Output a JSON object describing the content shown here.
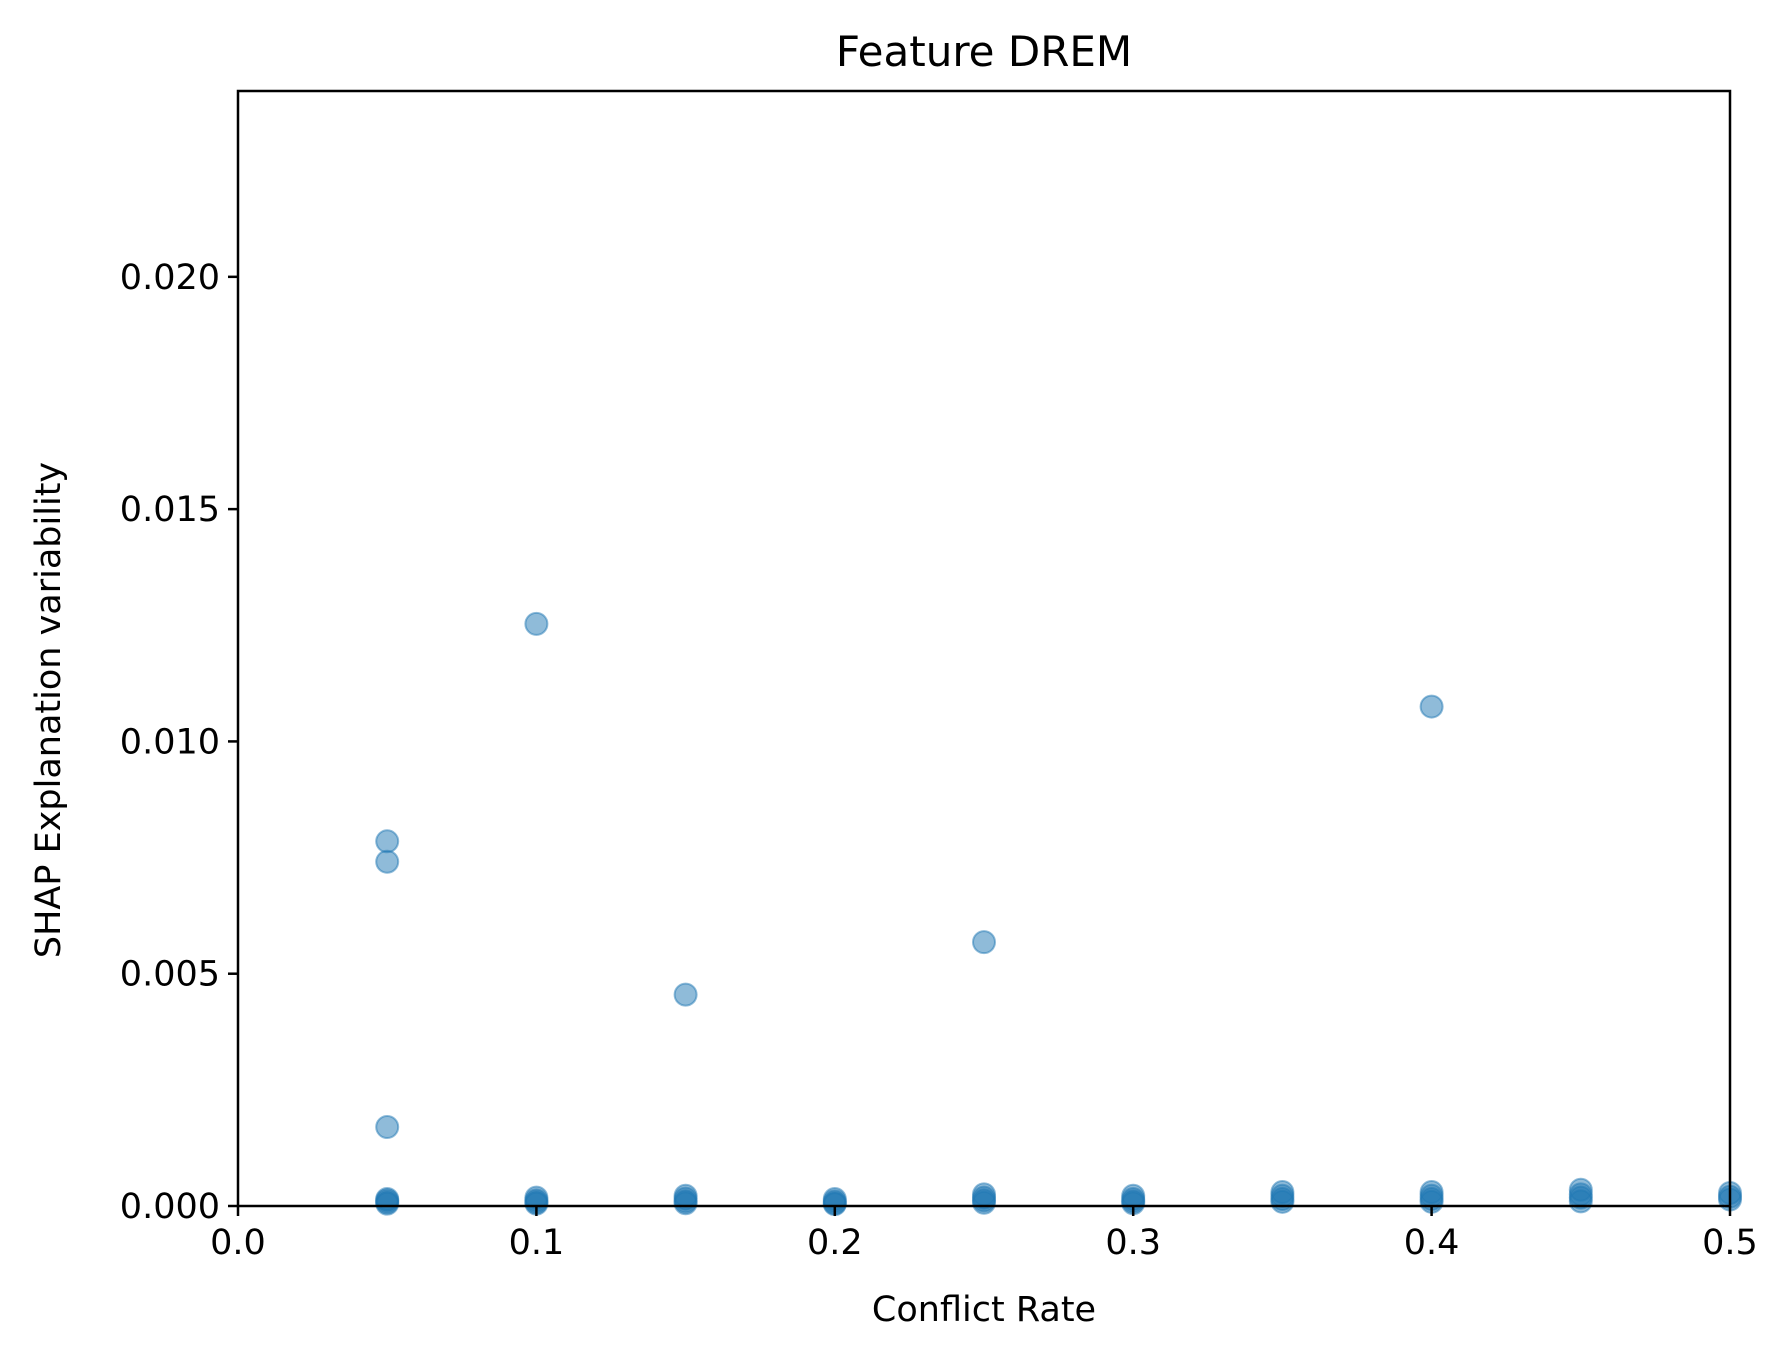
{
  "chart_data": {
    "type": "scatter",
    "title": "Feature DREM",
    "xlabel": "Conflict Rate",
    "ylabel": "SHAP Explanation variability",
    "xlim": [
      0.0,
      0.5
    ],
    "ylim": [
      0.0,
      0.024
    ],
    "x_ticks": [
      0.0,
      0.1,
      0.2,
      0.3,
      0.4,
      0.5
    ],
    "x_tick_labels": [
      "0.0",
      "0.1",
      "0.2",
      "0.3",
      "0.4",
      "0.5"
    ],
    "y_ticks": [
      0.0,
      0.005,
      0.01,
      0.015,
      0.02
    ],
    "y_tick_labels": [
      "0.000",
      "0.005",
      "0.010",
      "0.015",
      "0.020"
    ],
    "grid": false,
    "marker_color": "#1f77b4",
    "marker_alpha": 0.5,
    "points": [
      {
        "x": 0.05,
        "y": 0.00785
      },
      {
        "x": 0.05,
        "y": 0.00741
      },
      {
        "x": 0.05,
        "y": 0.0017
      },
      {
        "x": 0.1,
        "y": 0.01253
      },
      {
        "x": 0.15,
        "y": 0.00455
      },
      {
        "x": 0.25,
        "y": 0.00568
      },
      {
        "x": 0.4,
        "y": 0.01075
      },
      {
        "x": 0.05,
        "y": 0.00012
      },
      {
        "x": 0.05,
        "y": 8e-05
      },
      {
        "x": 0.05,
        "y": 5e-05
      },
      {
        "x": 0.05,
        "y": 0.00015
      },
      {
        "x": 0.1,
        "y": 0.00018
      },
      {
        "x": 0.1,
        "y": 0.00012
      },
      {
        "x": 0.1,
        "y": 8e-05
      },
      {
        "x": 0.1,
        "y": 5e-05
      },
      {
        "x": 0.15,
        "y": 0.00022
      },
      {
        "x": 0.15,
        "y": 0.00016
      },
      {
        "x": 0.15,
        "y": 0.0001
      },
      {
        "x": 0.15,
        "y": 6e-05
      },
      {
        "x": 0.2,
        "y": 0.00015
      },
      {
        "x": 0.2,
        "y": 0.0001
      },
      {
        "x": 0.2,
        "y": 6e-05
      },
      {
        "x": 0.2,
        "y": 4e-05
      },
      {
        "x": 0.25,
        "y": 0.00025
      },
      {
        "x": 0.25,
        "y": 0.00018
      },
      {
        "x": 0.25,
        "y": 0.00012
      },
      {
        "x": 0.25,
        "y": 7e-05
      },
      {
        "x": 0.3,
        "y": 0.00022
      },
      {
        "x": 0.3,
        "y": 0.00015
      },
      {
        "x": 0.3,
        "y": 0.0001
      },
      {
        "x": 0.3,
        "y": 6e-05
      },
      {
        "x": 0.35,
        "y": 0.0003
      },
      {
        "x": 0.35,
        "y": 0.00022
      },
      {
        "x": 0.35,
        "y": 0.00015
      },
      {
        "x": 0.35,
        "y": 9e-05
      },
      {
        "x": 0.4,
        "y": 0.0003
      },
      {
        "x": 0.4,
        "y": 0.00022
      },
      {
        "x": 0.4,
        "y": 0.00015
      },
      {
        "x": 0.4,
        "y": 9e-05
      },
      {
        "x": 0.45,
        "y": 0.00035
      },
      {
        "x": 0.45,
        "y": 0.00025
      },
      {
        "x": 0.45,
        "y": 0.00018
      },
      {
        "x": 0.45,
        "y": 0.0001
      },
      {
        "x": 0.5,
        "y": 0.00028
      },
      {
        "x": 0.5,
        "y": 0.0002
      },
      {
        "x": 0.5,
        "y": 0.00014
      }
    ]
  }
}
